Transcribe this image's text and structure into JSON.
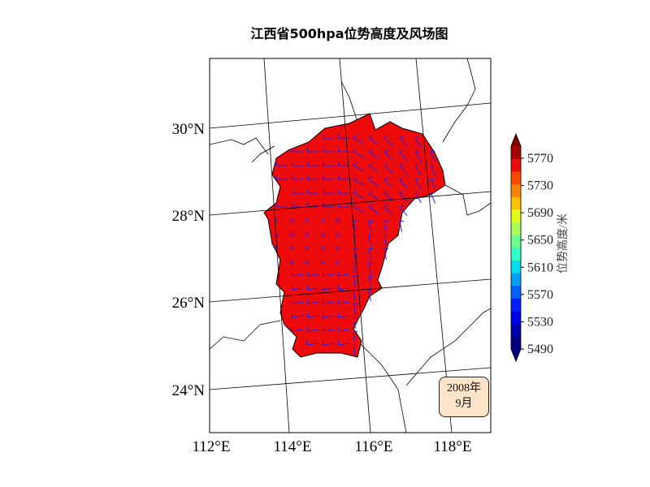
{
  "title": "江西省500hpa位势高度及风场图",
  "map": {
    "lat_labels": [
      "30°N",
      "28°N",
      "26°N",
      "24°N"
    ],
    "lon_labels": [
      "112°E",
      "114°E",
      "116°E",
      "118°E"
    ],
    "fill_color": "#ee0b0b",
    "barb_color": "#2222ee"
  },
  "colorbar": {
    "label": "位势高度/米",
    "ticks": [
      "5770",
      "5730",
      "5690",
      "5650",
      "5610",
      "5570",
      "5530",
      "5490"
    ],
    "colors": [
      "#000080",
      "#0000b2",
      "#0000ee",
      "#0020ff",
      "#0060ff",
      "#00a0ff",
      "#00dcf0",
      "#30ffc6",
      "#6bff8d",
      "#a6ff52",
      "#e1ff16",
      "#ffc200",
      "#ff8400",
      "#ff4700",
      "#ee0b0b",
      "#a30000"
    ],
    "extend_low": "#000080",
    "extend_high": "#800000"
  },
  "date_box": {
    "line1": "2008年",
    "line2": "9月"
  }
}
